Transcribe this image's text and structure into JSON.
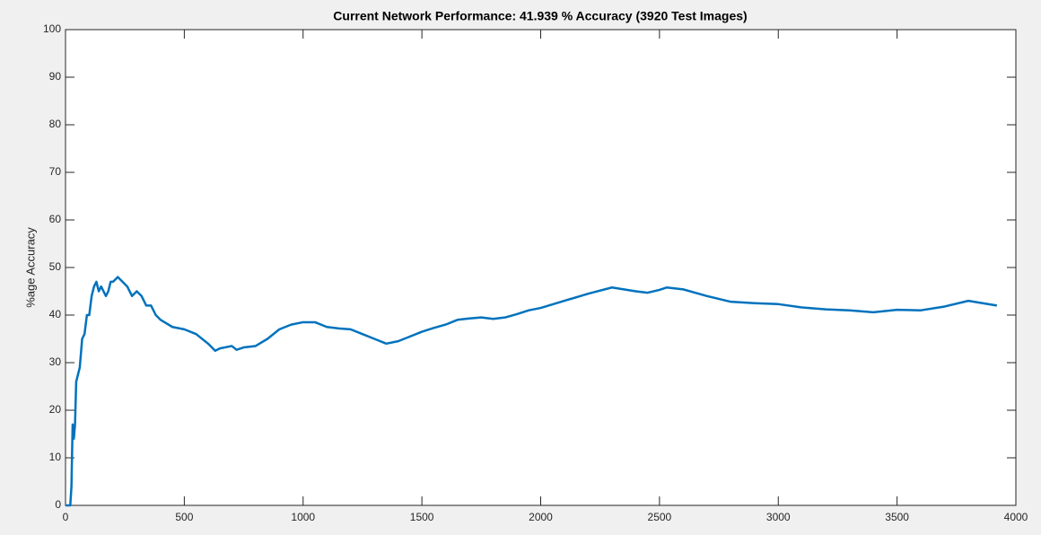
{
  "chart_data": {
    "type": "line",
    "title": "Current Network Performance: 41.939 % Accuracy (3920 Test Images)",
    "y_label": "%age Accuracy",
    "x": [
      0,
      10,
      20,
      25,
      30,
      35,
      40,
      45,
      50,
      60,
      70,
      80,
      90,
      100,
      110,
      120,
      130,
      140,
      150,
      160,
      170,
      180,
      190,
      200,
      220,
      240,
      260,
      280,
      300,
      320,
      340,
      360,
      380,
      400,
      450,
      500,
      550,
      600,
      630,
      650,
      700,
      720,
      750,
      800,
      850,
      900,
      950,
      1000,
      1050,
      1100,
      1150,
      1200,
      1250,
      1300,
      1350,
      1400,
      1450,
      1500,
      1550,
      1600,
      1650,
      1700,
      1750,
      1800,
      1850,
      1900,
      1950,
      2000,
      2100,
      2200,
      2300,
      2400,
      2450,
      2500,
      2530,
      2600,
      2700,
      2800,
      2900,
      3000,
      3100,
      3200,
      3300,
      3400,
      3500,
      3600,
      3700,
      3800,
      3920
    ],
    "values": [
      0,
      0,
      0,
      4,
      17,
      14,
      17,
      26,
      27,
      29,
      35,
      36,
      40,
      40,
      44,
      46,
      47,
      45,
      46,
      45,
      44,
      45,
      47,
      47,
      48,
      47,
      46,
      44,
      45,
      44,
      42,
      42,
      40,
      39,
      37.5,
      37,
      36,
      34,
      32.5,
      33,
      33.5,
      32.7,
      33.2,
      33.5,
      35,
      37,
      38,
      38.5,
      38.5,
      37.5,
      37.2,
      37,
      36,
      35,
      34,
      34.5,
      35.5,
      36.5,
      37.3,
      38,
      39,
      39.3,
      39.5,
      39.2,
      39.5,
      40.2,
      41,
      41.5,
      43,
      44.5,
      45.8,
      45,
      44.7,
      45.3,
      45.8,
      45.4,
      44,
      42.8,
      42.5,
      42.3,
      41.6,
      41.2,
      41,
      40.6,
      41.1,
      41,
      41.8,
      43,
      42
    ],
    "color": "#0072bd",
    "xlim": [
      0,
      4000
    ],
    "xticks": [
      0,
      500,
      1000,
      1500,
      2000,
      2500,
      3000,
      3500,
      4000
    ],
    "ylim": [
      0,
      100
    ],
    "yticks": [
      0,
      10,
      20,
      30,
      40,
      50,
      60,
      70,
      80,
      90,
      100
    ],
    "grid": false
  }
}
